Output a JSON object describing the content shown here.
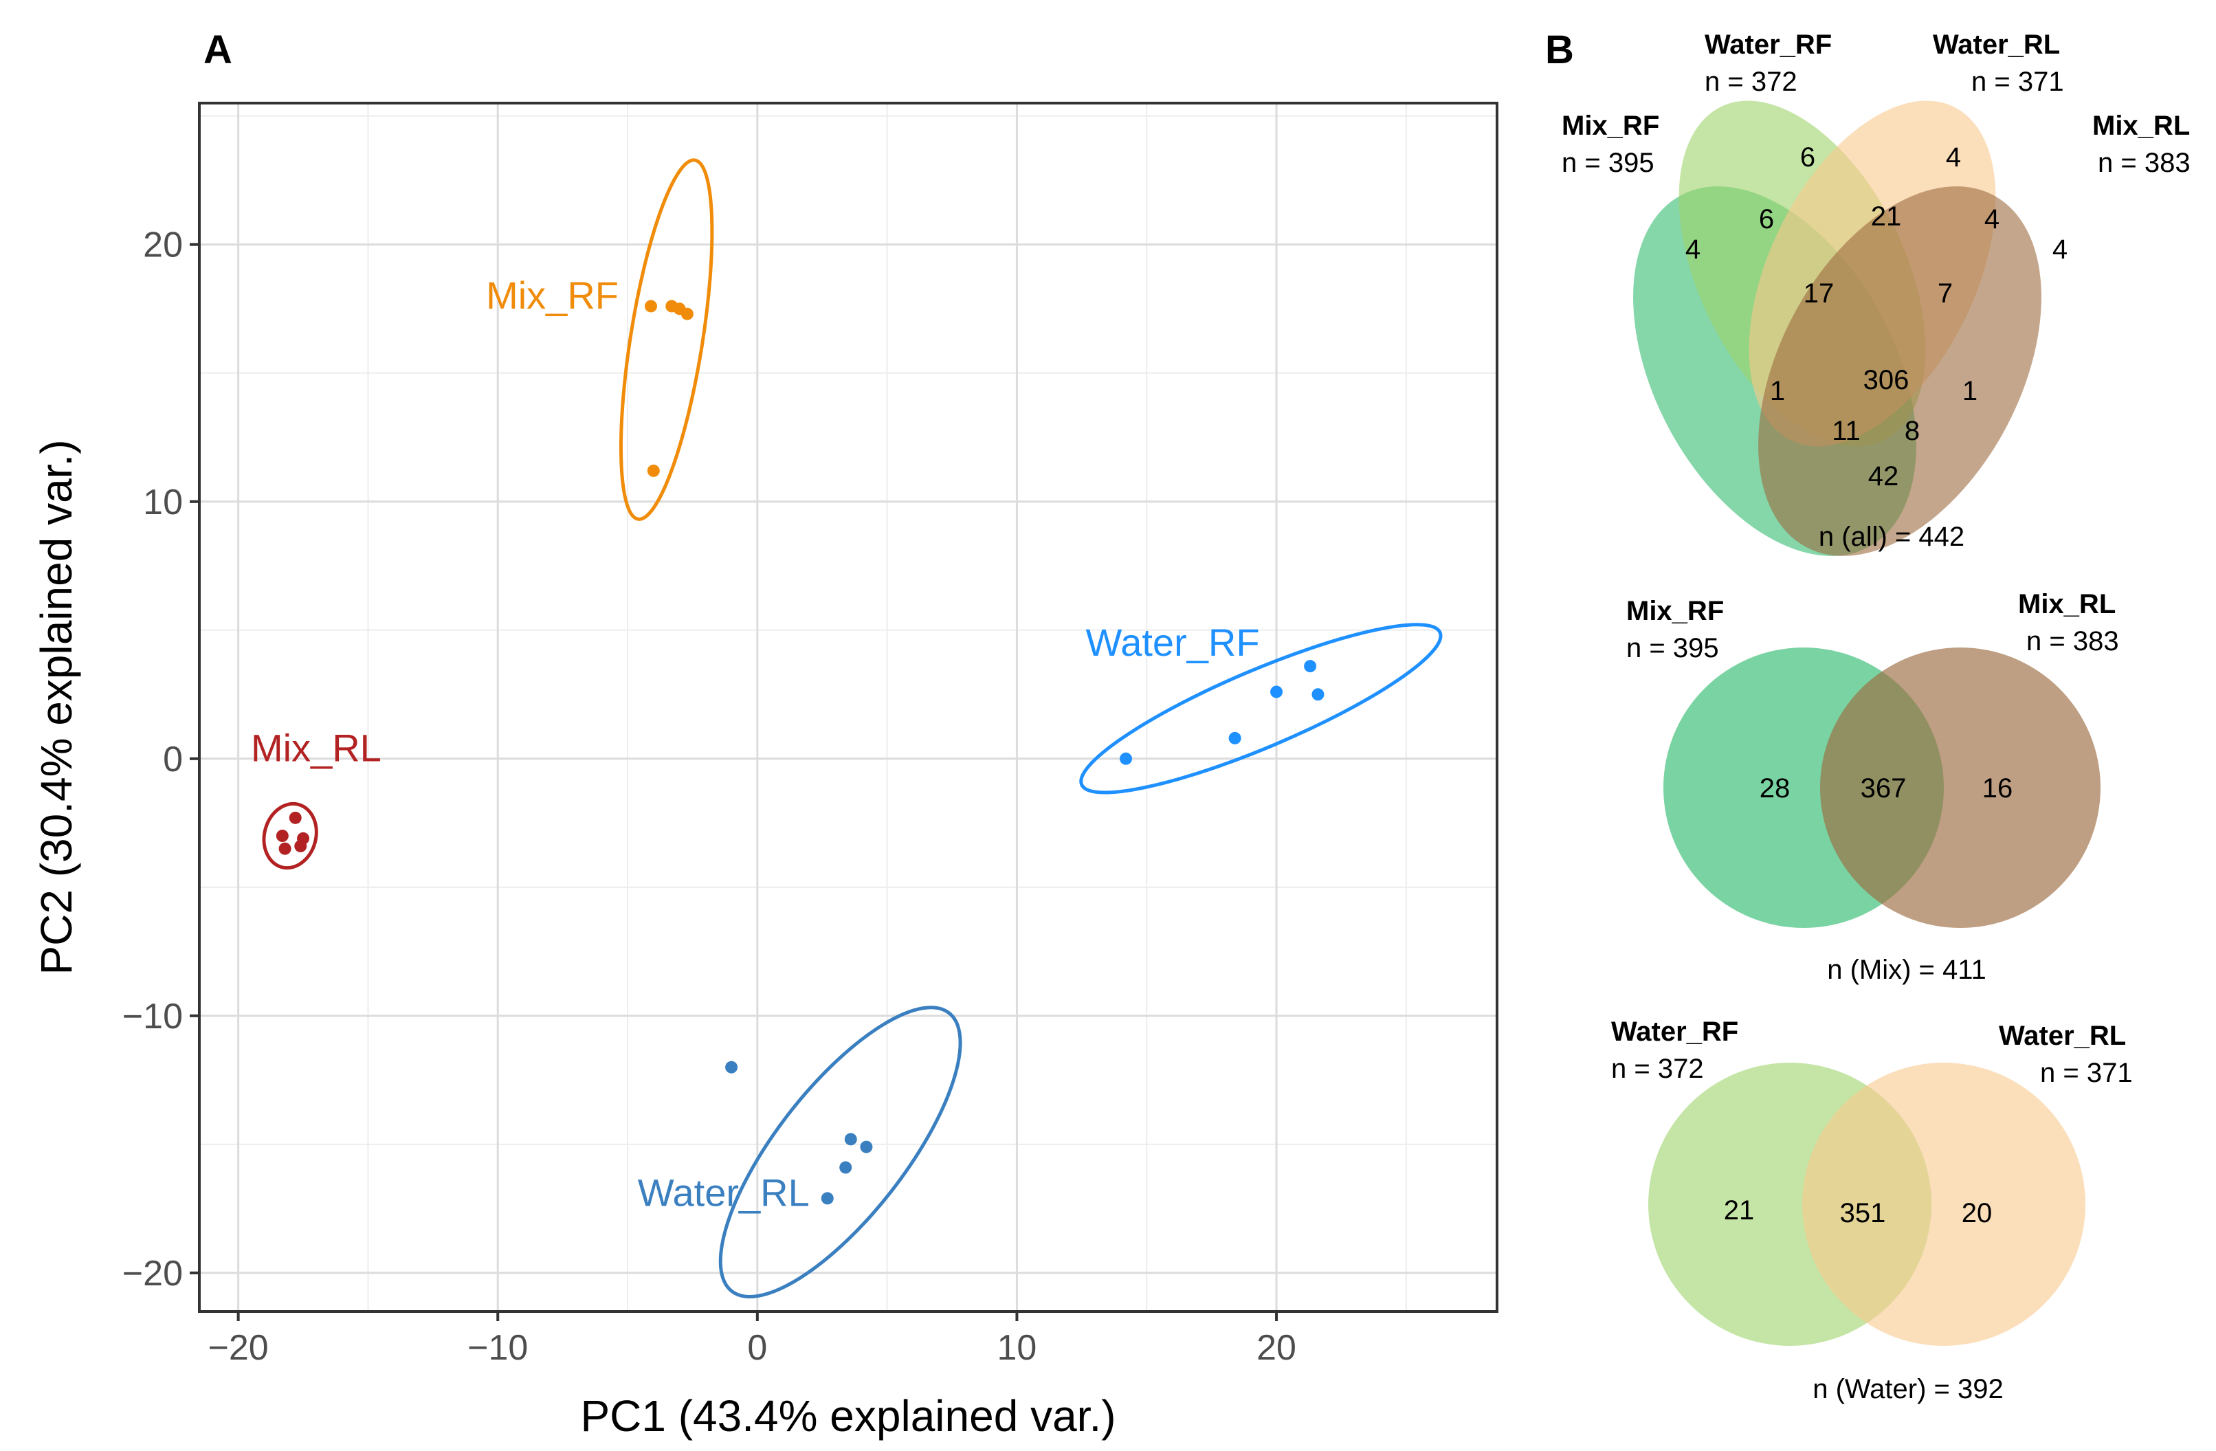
{
  "panel_a": {
    "letter": "A",
    "chart_data": {
      "type": "scatter",
      "xlabel": "PC1 (43.4% explained var.)",
      "ylabel": "PC2 (30.4% explained var.)",
      "xlim": [
        -21.5,
        28.5
      ],
      "ylim": [
        -21.5,
        25.5
      ],
      "x_ticks": [
        -20,
        -10,
        0,
        10,
        20
      ],
      "y_ticks": [
        -20,
        -10,
        0,
        10,
        20
      ],
      "x_tick_labels": [
        "−20",
        "−10",
        "0",
        "10",
        "20"
      ],
      "y_tick_labels": [
        "−20",
        "−10",
        "0",
        "10",
        "20"
      ],
      "grid": true,
      "series": [
        {
          "name": "Mix_RF",
          "color": "#f08c0a",
          "label_at": [
            -7.9,
            17.5
          ],
          "points": [
            [
              -4.1,
              17.6
            ],
            [
              -3.3,
              17.6
            ],
            [
              -3.0,
              17.5
            ],
            [
              -2.7,
              17.3
            ],
            [
              -4.0,
              11.2
            ]
          ],
          "ellipse": {
            "cx": -3.5,
            "cy": 16.3,
            "rx": 7.0,
            "ry": 1.4,
            "angle": 81
          }
        },
        {
          "name": "Mix_RL",
          "color": "#b22222",
          "label_at": [
            -17.0,
            -0.1
          ],
          "points": [
            [
              -18.3,
              -3.0
            ],
            [
              -17.8,
              -2.3
            ],
            [
              -18.2,
              -3.5
            ],
            [
              -17.6,
              -3.4
            ],
            [
              -17.5,
              -3.1
            ]
          ],
          "ellipse": {
            "cx": -18.0,
            "cy": -3.0,
            "rx": 1.25,
            "ry": 1.0,
            "angle": 75
          }
        },
        {
          "name": "Water_RF",
          "color": "#1e90ff",
          "label_at": [
            16.0,
            4.0
          ],
          "points": [
            [
              14.2,
              0.0
            ],
            [
              18.4,
              0.8
            ],
            [
              20.0,
              2.6
            ],
            [
              21.3,
              3.6
            ],
            [
              21.6,
              2.5
            ]
          ],
          "ellipse": {
            "cx": 19.4,
            "cy": 1.95,
            "rx": 7.5,
            "ry": 1.5,
            "angle": 23
          }
        },
        {
          "name": "Water_RL",
          "color": "#3a7fbf",
          "label_at": [
            -1.3,
            -17.4
          ],
          "points": [
            [
              -1.0,
              -12.0
            ],
            [
              3.6,
              -14.8
            ],
            [
              4.2,
              -15.1
            ],
            [
              3.4,
              -15.9
            ],
            [
              2.7,
              -17.1
            ]
          ],
          "ellipse": {
            "cx": 3.2,
            "cy": -15.3,
            "rx": 6.8,
            "ry": 2.5,
            "angle": 52
          }
        }
      ]
    }
  },
  "panel_b": {
    "letter": "B",
    "chart_data": [
      {
        "type": "venn",
        "sets": [
          {
            "name": "Mix_RF",
            "n": "n = 395",
            "color": "#33bb70"
          },
          {
            "name": "Water_RF",
            "n": "n = 372",
            "color": "#9fd46a"
          },
          {
            "name": "Water_RL",
            "n": "n = 371",
            "color": "#f9c88c"
          },
          {
            "name": "Mix_RL",
            "n": "n = 383",
            "color": "#9c6b40"
          }
        ],
        "regions": [
          {
            "sets": [
              "Mix_RF"
            ],
            "value": "4"
          },
          {
            "sets": [
              "Water_RF"
            ],
            "value": "6"
          },
          {
            "sets": [
              "Water_RL"
            ],
            "value": "4"
          },
          {
            "sets": [
              "Mix_RL"
            ],
            "value": "4"
          },
          {
            "sets": [
              "Mix_RF",
              "Water_RF"
            ],
            "value": "6"
          },
          {
            "sets": [
              "Water_RF",
              "Water_RL"
            ],
            "value": "21"
          },
          {
            "sets": [
              "Water_RL",
              "Mix_RL"
            ],
            "value": "4"
          },
          {
            "sets": [
              "Mix_RF",
              "Water_RF",
              "Water_RL"
            ],
            "value": "17"
          },
          {
            "sets": [
              "Water_RF",
              "Water_RL",
              "Mix_RL"
            ],
            "value": "7"
          },
          {
            "sets": [
              "Mix_RF",
              "Water_RL"
            ],
            "value": "1"
          },
          {
            "sets": [
              "Mix_RF",
              "Water_RF",
              "Water_RL",
              "Mix_RL"
            ],
            "value": "306"
          },
          {
            "sets": [
              "Water_RF",
              "Mix_RL"
            ],
            "value": "1"
          },
          {
            "sets": [
              "Mix_RF",
              "Water_RL",
              "Mix_RL"
            ],
            "value": "11"
          },
          {
            "sets": [
              "Mix_RF",
              "Water_RF",
              "Mix_RL"
            ],
            "value": "8"
          },
          {
            "sets": [
              "Mix_RF",
              "Mix_RL"
            ],
            "value": "42"
          }
        ],
        "total": "n (all) = 442"
      },
      {
        "type": "venn",
        "sets": [
          {
            "name": "Mix_RF",
            "n": "n = 395",
            "color": "#33bb70"
          },
          {
            "name": "Mix_RL",
            "n": "n = 383",
            "color": "#9c6b40"
          }
        ],
        "regions": [
          {
            "sets": [
              "Mix_RF"
            ],
            "value": "28"
          },
          {
            "sets": [
              "Mix_RF",
              "Mix_RL"
            ],
            "value": "367"
          },
          {
            "sets": [
              "Mix_RL"
            ],
            "value": "16"
          }
        ],
        "total": "n (Mix) = 411"
      },
      {
        "type": "venn",
        "sets": [
          {
            "name": "Water_RF",
            "n": "n = 372",
            "color": "#9fd46a"
          },
          {
            "name": "Water_RL",
            "n": "n = 371",
            "color": "#f9c88c"
          }
        ],
        "regions": [
          {
            "sets": [
              "Water_RF"
            ],
            "value": "21"
          },
          {
            "sets": [
              "Water_RF",
              "Water_RL"
            ],
            "value": "351"
          },
          {
            "sets": [
              "Water_RL"
            ],
            "value": "20"
          }
        ],
        "total": "n (Water) = 392"
      }
    ]
  }
}
